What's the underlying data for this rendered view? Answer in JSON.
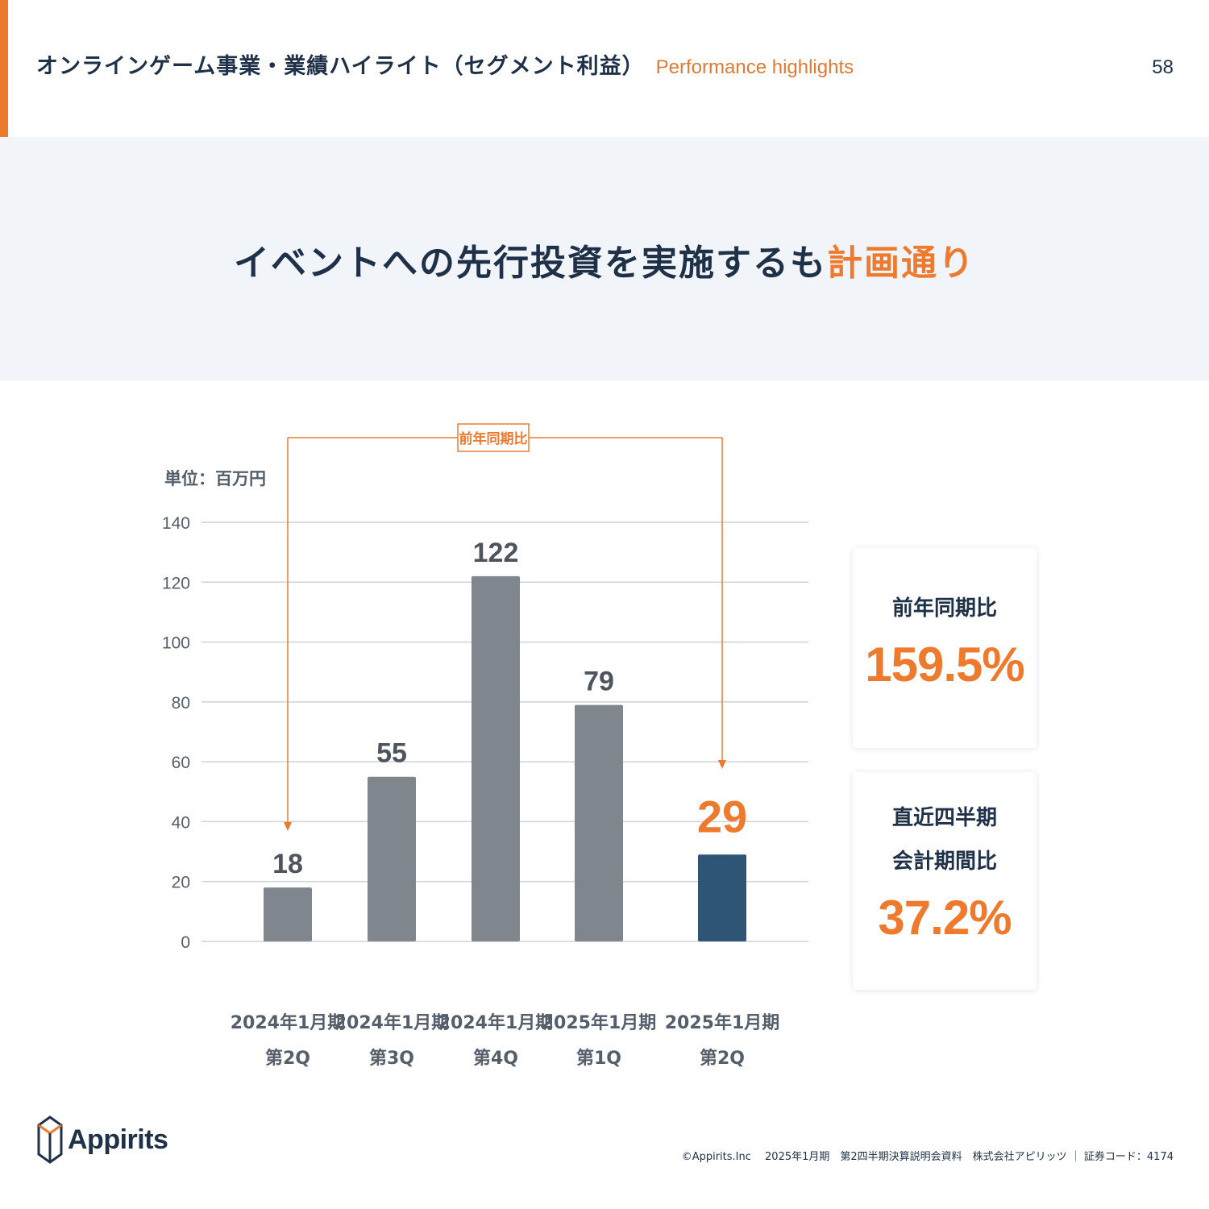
{
  "header": {
    "title_ja": "オンラインゲーム事業・業績ハイライト（セグメント利益）",
    "title_en": "Performance highlights",
    "page_number": "58"
  },
  "banner": {
    "headline_main": "イベントへの先行投資を実施するも",
    "headline_highlight": "計画通り"
  },
  "chart_data": {
    "type": "bar",
    "unit_label": "単位：百万円",
    "categories": [
      [
        "2024年1月期",
        "第2Q"
      ],
      [
        "2024年1月期",
        "第3Q"
      ],
      [
        "2024年1月期",
        "第4Q"
      ],
      [
        "2025年1月期",
        "第1Q"
      ],
      [
        "2025年1月期",
        "第2Q"
      ]
    ],
    "values": [
      18,
      55,
      122,
      79,
      29
    ],
    "ylim": [
      0,
      140
    ],
    "yticks": [
      0,
      20,
      40,
      60,
      80,
      100,
      120,
      140
    ],
    "grid": true,
    "highlight_index": 4,
    "annotation": {
      "label": "前年同期比",
      "from_index": 0,
      "to_index": 4
    },
    "colors": {
      "bar": "#80868e",
      "highlight_bar": "#2e5476",
      "accent": "#ee7a2e",
      "grid": "#cfd2d6"
    }
  },
  "kpis": [
    {
      "label_lines": [
        "前年同期比"
      ],
      "value": "159.5%"
    },
    {
      "label_lines": [
        "直近四半期",
        "会計期間比"
      ],
      "value": "37.2%"
    }
  ],
  "footer": {
    "logo_text": "Appirits",
    "copyright": "©Appirits.Inc　 2025年1月期　第2四半期決算説明会資料　株式会社アピリッツ ｜ 証券コード：4174"
  }
}
